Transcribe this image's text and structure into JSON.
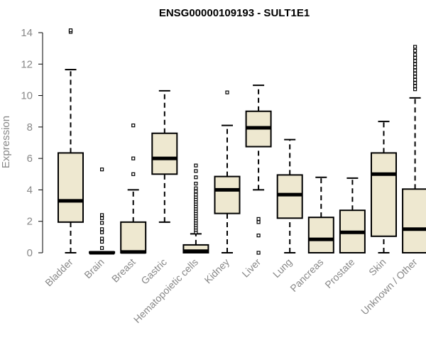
{
  "chart_data": {
    "type": "boxplot",
    "title": "ENSG00000109193 - SULT1E1",
    "xlabel": "",
    "ylabel": "Expression",
    "ylim": [
      0,
      14
    ],
    "yticks": [
      0,
      2,
      4,
      6,
      8,
      10,
      12,
      14
    ],
    "colors": {
      "box_fill": "#EEE8D0",
      "stroke": "#000000",
      "axis_text": "#888888"
    },
    "categories": [
      "Bladder",
      "Brain",
      "Breast",
      "Gastric",
      "Hematopoietic cells",
      "Kidney",
      "Liver",
      "Lung",
      "Pancreas",
      "Prostate",
      "Skin",
      "Unknown / Other"
    ],
    "boxes": [
      {
        "name": "Bladder",
        "min": 0,
        "q1": 1.95,
        "median": 3.3,
        "q3": 6.35,
        "max": 11.65,
        "outliers": [
          14.05,
          14.15
        ]
      },
      {
        "name": "Brain",
        "min": 0,
        "q1": 0,
        "median": 0,
        "q3": 0.05,
        "max": 0.05,
        "outliers": [
          0.3,
          0.7,
          0.9,
          1.3,
          1.5,
          1.9,
          2.2,
          2.4,
          5.3
        ]
      },
      {
        "name": "Breast",
        "min": 0,
        "q1": 0,
        "median": 0.05,
        "q3": 1.95,
        "max": 4.0,
        "outliers": [
          5.0,
          6.0,
          8.1
        ]
      },
      {
        "name": "Gastric",
        "min": 1.95,
        "q1": 5.0,
        "median": 6.0,
        "q3": 7.6,
        "max": 10.3,
        "outliers": []
      },
      {
        "name": "Hematopoietic cells",
        "min": 0,
        "q1": 0,
        "median": 0.1,
        "q3": 0.5,
        "max": 1.2,
        "outliers": [
          1.3,
          1.45,
          1.6,
          1.75,
          1.9,
          2.05,
          2.2,
          2.35,
          2.5,
          2.65,
          2.8,
          2.95,
          3.1,
          3.25,
          3.4,
          3.55,
          3.7,
          3.9,
          4.1,
          4.4,
          4.8,
          5.2,
          5.55
        ]
      },
      {
        "name": "Kidney",
        "min": 0,
        "q1": 2.5,
        "median": 4.0,
        "q3": 4.85,
        "max": 8.1,
        "outliers": [
          10.2
        ]
      },
      {
        "name": "Liver",
        "min": 4.0,
        "q1": 6.75,
        "median": 7.95,
        "q3": 9.0,
        "max": 10.65,
        "outliers": [
          0.0,
          1.1,
          1.95,
          2.15
        ]
      },
      {
        "name": "Lung",
        "min": 0,
        "q1": 2.2,
        "median": 3.7,
        "q3": 4.95,
        "max": 7.2,
        "outliers": []
      },
      {
        "name": "Pancreas",
        "min": 0,
        "q1": 0,
        "median": 0.85,
        "q3": 2.25,
        "max": 4.8,
        "outliers": []
      },
      {
        "name": "Prostate",
        "min": 0,
        "q1": 0,
        "median": 1.3,
        "q3": 2.7,
        "max": 4.75,
        "outliers": []
      },
      {
        "name": "Skin",
        "min": 0,
        "q1": 1.05,
        "median": 5.0,
        "q3": 6.35,
        "max": 8.35,
        "outliers": []
      },
      {
        "name": "Unknown / Other",
        "min": 0,
        "q1": 0,
        "median": 1.5,
        "q3": 4.05,
        "max": 9.85,
        "outliers": [
          10.4,
          10.6,
          10.8,
          11.0,
          11.2,
          11.4,
          11.6,
          11.8,
          12.0,
          12.2,
          12.4,
          12.6,
          12.85,
          13.1
        ]
      }
    ]
  }
}
